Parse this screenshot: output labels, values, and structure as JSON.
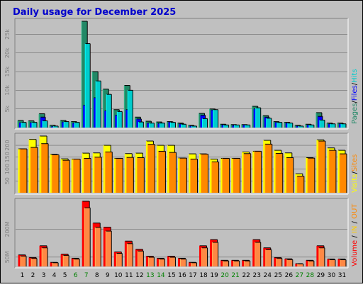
{
  "title": "Daily usage for December 2025",
  "colors": {
    "frame_bg": "#c0c0c0",
    "title": "#0000cc",
    "pages": "#228866",
    "files": "#0000ff",
    "hits": "#00cccc",
    "visits": "#ffff00",
    "sites": "#ff8800",
    "kbytes": "#ff0000",
    "weekend": "#008000",
    "weekday": "#000000"
  },
  "chart_data": [
    {
      "type": "bar",
      "name": "hits-files-pages",
      "categories": [
        "1",
        "2",
        "3",
        "4",
        "5",
        "6",
        "7",
        "8",
        "9",
        "10",
        "11",
        "12",
        "13",
        "14",
        "15",
        "16",
        "17",
        "18",
        "19",
        "20",
        "21",
        "22",
        "23",
        "24",
        "25",
        "26",
        "27",
        "28",
        "29",
        "30",
        "31"
      ],
      "weekend_days": [
        "6",
        "7",
        "13",
        "14",
        "20",
        "21",
        "27",
        "28"
      ],
      "series": [
        {
          "name": "Pages",
          "values": [
            1900,
            1800,
            3700,
            600,
            1900,
            1600,
            28500,
            15000,
            10300,
            4800,
            11300,
            2800,
            1700,
            1500,
            1600,
            1200,
            600,
            3800,
            5000,
            900,
            800,
            800,
            5700,
            3200,
            1600,
            1400,
            600,
            900,
            4000,
            1200,
            1200
          ]
        },
        {
          "name": "Files",
          "values": [
            1300,
            1300,
            2800,
            300,
            1500,
            1200,
            6000,
            8000,
            4500,
            3300,
            4800,
            2300,
            1200,
            1100,
            1500,
            1000,
            400,
            3300,
            4700,
            700,
            600,
            700,
            5000,
            2800,
            1400,
            1200,
            400,
            700,
            3000,
            1000,
            1000
          ]
        },
        {
          "name": "Hits",
          "values": [
            1400,
            1400,
            1800,
            400,
            1600,
            1400,
            22500,
            12500,
            8900,
            4300,
            10000,
            1500,
            1200,
            1200,
            1400,
            900,
            400,
            2400,
            4800,
            700,
            700,
            700,
            5300,
            2500,
            1400,
            1200,
            400,
            700,
            2000,
            1000,
            1000
          ]
        }
      ],
      "y_ticks": [
        "5k",
        "10k",
        "15k",
        "20k",
        "25k"
      ],
      "ylim": [
        0,
        28500
      ],
      "legend_text": [
        "Pages",
        "Files",
        "Hits"
      ]
    },
    {
      "type": "bar",
      "name": "visits-sites",
      "categories": [
        "1",
        "2",
        "3",
        "4",
        "5",
        "6",
        "7",
        "8",
        "9",
        "10",
        "11",
        "12",
        "13",
        "14",
        "15",
        "16",
        "17",
        "18",
        "19",
        "20",
        "21",
        "22",
        "23",
        "24",
        "25",
        "26",
        "27",
        "28",
        "29",
        "30",
        "31"
      ],
      "series": [
        {
          "name": "Visits",
          "values": [
            185,
            225,
            239,
            162,
            143,
            142,
            167,
            168,
            200,
            145,
            165,
            167,
            218,
            200,
            200,
            146,
            164,
            164,
            142,
            145,
            145,
            172,
            175,
            221,
            179,
            168,
            80,
            148,
            223,
            189,
            179
          ]
        },
        {
          "name": "Sites",
          "values": [
            185,
            191,
            207,
            160,
            137,
            142,
            145,
            150,
            172,
            145,
            149,
            148,
            204,
            175,
            170,
            146,
            142,
            163,
            130,
            145,
            145,
            165,
            175,
            205,
            166,
            148,
            70,
            146,
            218,
            179,
            164
          ]
        }
      ],
      "y_ticks": [
        "50",
        "100",
        "150",
        "200"
      ],
      "ylim": [
        0,
        239
      ],
      "legend_text": [
        "Visits",
        "Sites"
      ]
    },
    {
      "type": "bar",
      "name": "volume",
      "categories": [
        "1",
        "2",
        "3",
        "4",
        "5",
        "6",
        "7",
        "8",
        "9",
        "10",
        "11",
        "12",
        "13",
        "14",
        "15",
        "16",
        "17",
        "18",
        "19",
        "20",
        "21",
        "22",
        "23",
        "24",
        "25",
        "26",
        "27",
        "28",
        "29",
        "30",
        "31"
      ],
      "series": [
        {
          "name": "Volume",
          "values": [
            62,
            48,
            111,
            22,
            66,
            44,
            350,
            233,
            211,
            78,
            136,
            92,
            55,
            44,
            55,
            44,
            22,
            111,
            144,
            33,
            33,
            33,
            144,
            100,
            48,
            41,
            15,
            33,
            111,
            40,
            40
          ]
        }
      ],
      "y_ticks": [
        "50M",
        "200M"
      ],
      "y_tick_values": [
        50,
        200
      ],
      "ylim": [
        0,
        350
      ],
      "legend_text": [
        "Volume",
        "IN",
        "OUT"
      ]
    }
  ]
}
